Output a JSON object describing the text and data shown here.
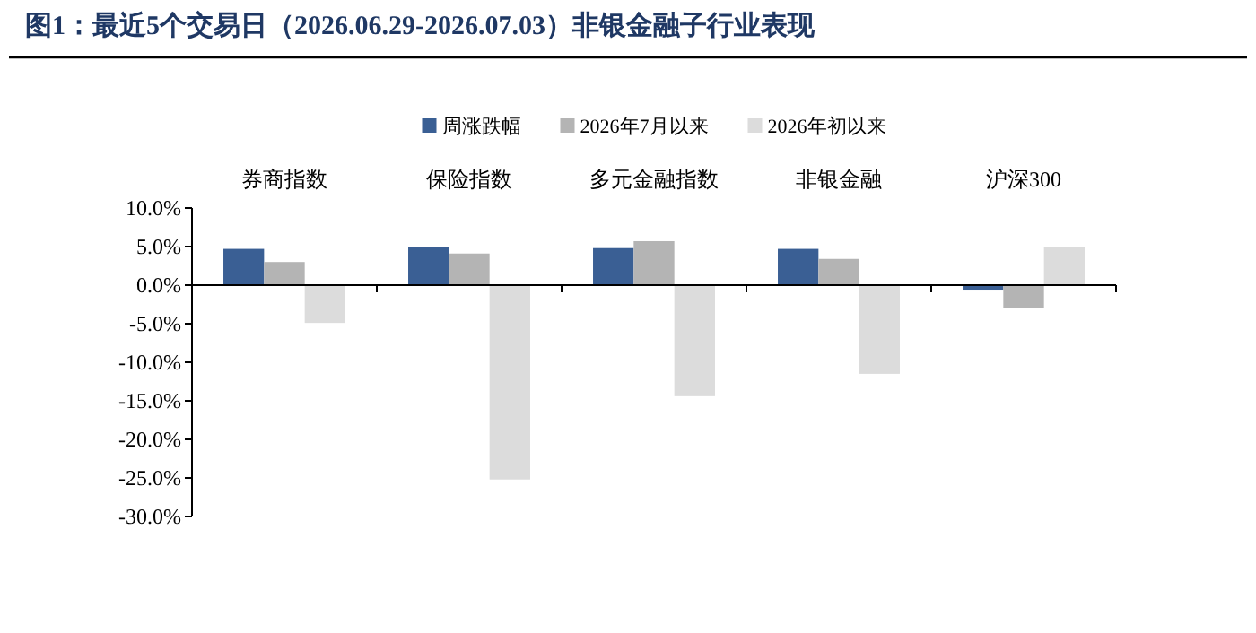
{
  "chart_data": {
    "type": "bar",
    "title": "图1：最近5个交易日（2026.06.29-2026.07.03）非银金融子行业表现",
    "categories": [
      "券商指数",
      "保险指数",
      "多元金融指数",
      "非银金融",
      "沪深300"
    ],
    "series": [
      {
        "name": "周涨跌幅",
        "color": "#3a5f94",
        "values": [
          4.7,
          5.0,
          4.8,
          4.7,
          -0.7
        ]
      },
      {
        "name": "2026年7月以来",
        "color": "#b4b4b4",
        "values": [
          3.0,
          4.1,
          5.7,
          3.4,
          -3.0
        ]
      },
      {
        "name": "2026年初以来",
        "color": "#dcdcdc",
        "values": [
          -4.9,
          -25.2,
          -14.4,
          -11.5,
          4.9
        ]
      }
    ],
    "ylim": [
      -30,
      10
    ],
    "yticks": [
      {
        "value": -30,
        "label": "-30.0%"
      },
      {
        "value": -25,
        "label": "-25.0%"
      },
      {
        "value": -20,
        "label": "-20.0%"
      },
      {
        "value": -15,
        "label": "-15.0%"
      },
      {
        "value": -10,
        "label": "-10.0%"
      },
      {
        "value": -5,
        "label": "-5.0%"
      },
      {
        "value": 0,
        "label": "0.0%"
      },
      {
        "value": 5,
        "label": "5.0%"
      },
      {
        "value": 10,
        "label": "10.0%"
      }
    ],
    "legend": "top"
  }
}
